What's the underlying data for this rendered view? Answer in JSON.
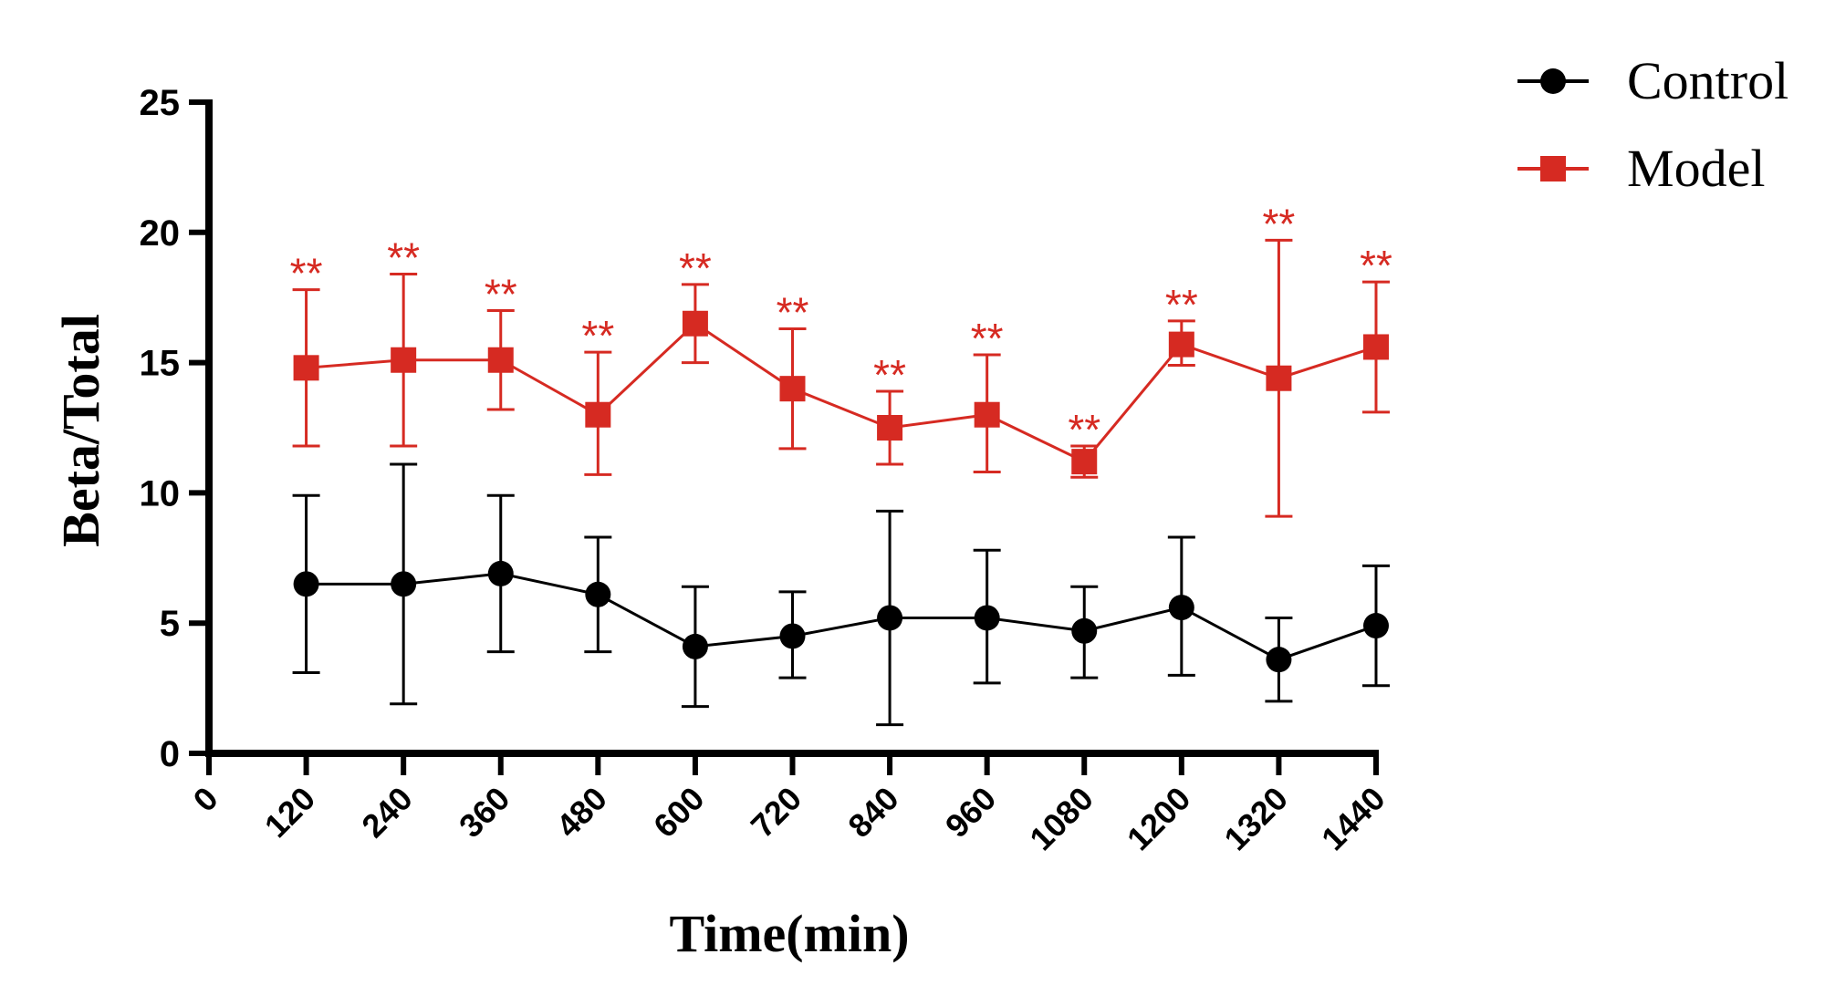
{
  "chart_data": {
    "type": "line",
    "title": "",
    "xlabel": "Time(min)",
    "ylabel": "Beta/Total",
    "ylim": [
      0,
      25
    ],
    "xlim": [
      0,
      1440
    ],
    "yticks": [
      "0",
      "5",
      "10",
      "15",
      "20",
      "25"
    ],
    "xticks": [
      "0",
      "120",
      "240",
      "360",
      "480",
      "600",
      "720",
      "840",
      "960",
      "1080",
      "1200",
      "1320",
      "1440"
    ],
    "x": [
      120,
      240,
      360,
      480,
      600,
      720,
      840,
      960,
      1080,
      1200,
      1320,
      1440
    ],
    "legend_position": "top-right",
    "series": [
      {
        "name": "Control",
        "color": "#000000",
        "marker": "circle",
        "values": [
          6.5,
          6.5,
          6.9,
          6.1,
          4.1,
          4.5,
          5.2,
          5.2,
          4.7,
          5.6,
          3.6,
          4.9
        ],
        "err_upper": [
          9.9,
          11.1,
          9.9,
          8.3,
          6.4,
          6.2,
          9.3,
          7.8,
          6.4,
          8.3,
          5.2,
          7.2
        ],
        "err_lower": [
          3.1,
          1.9,
          3.9,
          3.9,
          1.8,
          2.9,
          1.1,
          2.7,
          2.9,
          3.0,
          2.0,
          2.6
        ]
      },
      {
        "name": "Model",
        "color": "#d62a22",
        "marker": "square",
        "values": [
          14.8,
          15.1,
          15.1,
          13.0,
          16.5,
          14.0,
          12.5,
          13.0,
          11.2,
          15.7,
          14.4,
          15.6
        ],
        "err_upper": [
          17.8,
          18.4,
          17.0,
          15.4,
          18.0,
          16.3,
          13.9,
          15.3,
          11.8,
          16.6,
          19.7,
          18.1
        ],
        "err_lower": [
          11.8,
          11.8,
          13.2,
          10.7,
          15.0,
          11.7,
          11.1,
          10.8,
          10.6,
          14.9,
          9.1,
          13.1
        ]
      }
    ],
    "annotations": [
      "**",
      "**",
      "**",
      "**",
      "**",
      "**",
      "**",
      "**",
      "**",
      "**",
      "**",
      "**"
    ]
  }
}
